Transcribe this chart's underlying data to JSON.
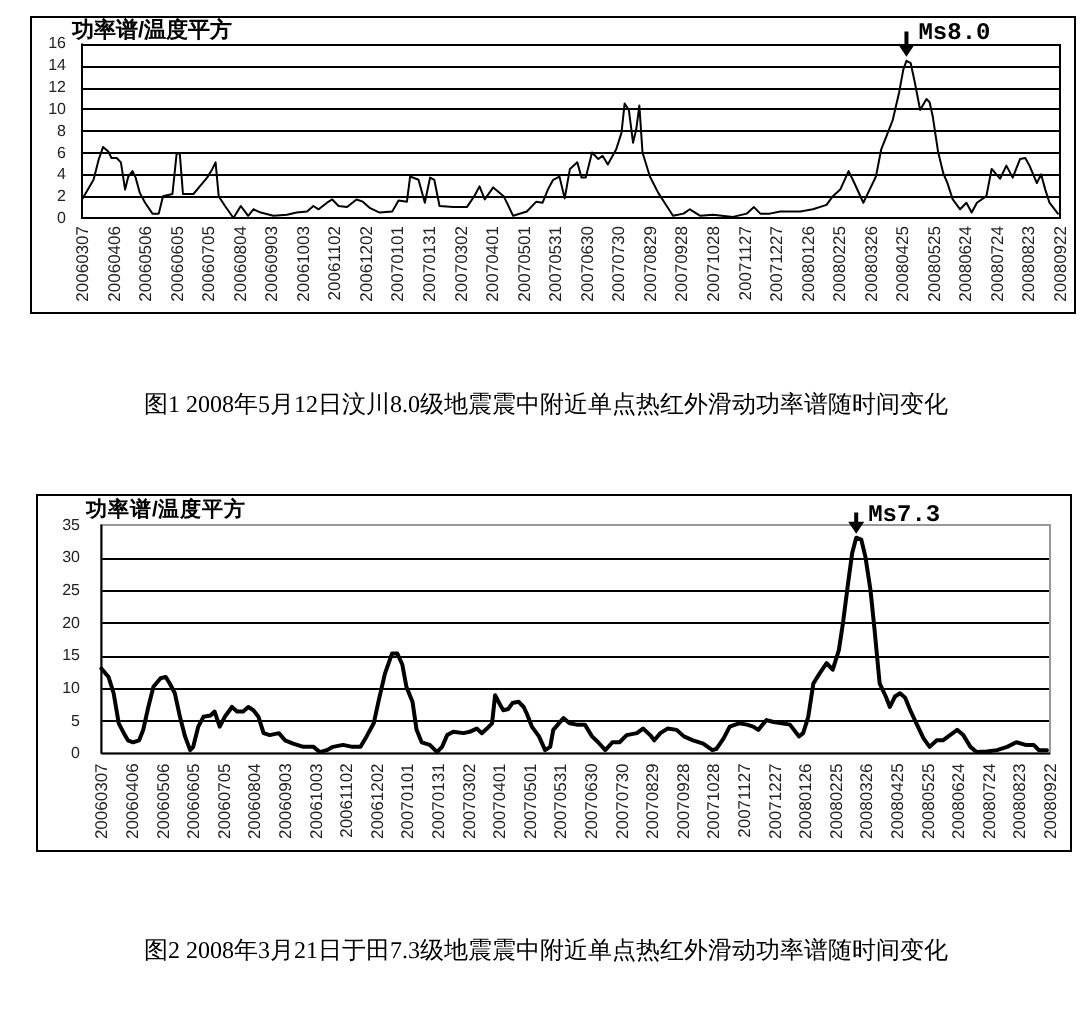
{
  "chart_data": [
    {
      "type": "line",
      "ylabel": "功率谱/温度平方",
      "x": [
        "2006-03-07",
        "2006-03-18",
        "2006-03-23",
        "2006-03-27",
        "2006-04-01",
        "2006-04-04",
        "2006-04-09",
        "2006-04-13",
        "2006-04-17",
        "2006-04-20",
        "2006-04-24",
        "2006-04-27",
        "2006-05-01",
        "2006-05-06",
        "2006-05-13",
        "2006-05-19",
        "2006-05-23",
        "2006-06-01",
        "2006-06-05",
        "2006-06-08",
        "2006-06-11",
        "2006-06-21",
        "2006-06-27",
        "2006-07-04",
        "2006-07-09",
        "2006-07-12",
        "2006-07-15",
        "2006-07-21",
        "2006-07-29",
        "2006-08-05",
        "2006-08-12",
        "2006-08-17",
        "2006-08-24",
        "2006-09-05",
        "2006-09-18",
        "2006-09-27",
        "2006-10-07",
        "2006-10-13",
        "2006-10-18",
        "2006-10-26",
        "2006-10-31",
        "2006-11-06",
        "2006-11-14",
        "2006-11-23",
        "2006-11-29",
        "2006-12-06",
        "2006-12-15",
        "2006-12-27",
        "2007-01-02",
        "2007-01-10",
        "2007-01-13",
        "2007-01-21",
        "2007-01-27",
        "2007-02-01",
        "2007-02-05",
        "2007-02-10",
        "2007-02-23",
        "2007-03-08",
        "2007-03-15",
        "2007-03-20",
        "2007-03-25",
        "2007-04-02",
        "2007-04-12",
        "2007-04-21",
        "2007-05-04",
        "2007-05-13",
        "2007-05-19",
        "2007-05-24",
        "2007-05-29",
        "2007-06-04",
        "2007-06-09",
        "2007-06-14",
        "2007-06-21",
        "2007-06-25",
        "2007-06-29",
        "2007-07-05",
        "2007-07-11",
        "2007-07-15",
        "2007-07-20",
        "2007-07-28",
        "2007-08-02",
        "2007-08-05",
        "2007-08-09",
        "2007-08-13",
        "2007-08-16",
        "2007-08-19",
        "2007-08-22",
        "2007-08-29",
        "2007-09-06",
        "2007-09-14",
        "2007-09-20",
        "2007-09-30",
        "2007-10-06",
        "2007-10-16",
        "2007-10-28",
        "2007-11-16",
        "2007-11-29",
        "2007-12-06",
        "2007-12-12",
        "2007-12-21",
        "2007-12-31",
        "2008-01-19",
        "2008-01-31",
        "2008-02-13",
        "2008-02-19",
        "2008-02-26",
        "2008-03-05",
        "2008-03-10",
        "2008-03-19",
        "2008-03-25",
        "2008-03-31",
        "2008-04-05",
        "2008-04-10",
        "2008-04-16",
        "2008-04-22",
        "2008-04-26",
        "2008-04-29",
        "2008-05-03",
        "2008-05-07",
        "2008-05-12",
        "2008-05-18",
        "2008-05-21",
        "2008-05-24",
        "2008-05-29",
        "2008-06-03",
        "2008-06-07",
        "2008-06-12",
        "2008-06-19",
        "2008-06-25",
        "2008-06-30",
        "2008-07-05",
        "2008-07-14",
        "2008-07-19",
        "2008-07-27",
        "2008-08-02",
        "2008-08-08",
        "2008-08-15",
        "2008-08-20",
        "2008-08-24",
        "2008-08-31",
        "2008-09-04",
        "2008-09-08",
        "2008-09-12",
        "2008-09-20"
      ],
      "series": [
        {
          "color": "#000000",
          "values": [
            1.7,
            3.5,
            5.4,
            6.5,
            6.1,
            5.5,
            5.5,
            5.1,
            2.6,
            3.8,
            4.3,
            3.7,
            2.3,
            1.4,
            0.4,
            0.4,
            2.0,
            2.2,
            5.9,
            5.9,
            2.2,
            2.2,
            2.9,
            3.7,
            4.5,
            5.1,
            2.0,
            1.1,
            0,
            1.1,
            0.2,
            0.8,
            0.5,
            0.2,
            0.3,
            0.5,
            0.6,
            1.1,
            0.8,
            1.4,
            1.7,
            1.1,
            1.0,
            1.7,
            1.5,
            0.9,
            0.5,
            0.6,
            1.6,
            1.5,
            3.8,
            3.5,
            1.4,
            3.7,
            3.5,
            1.1,
            1.0,
            1.0,
            2.0,
            2.9,
            1.7,
            2.8,
            2.0,
            0.2,
            0.6,
            1.5,
            1.4,
            2.6,
            3.5,
            3.8,
            1.8,
            4.5,
            5.1,
            3.7,
            3.7,
            6.0,
            5.4,
            5.7,
            4.9,
            6.3,
            7.8,
            10.5,
            9.9,
            6.9,
            8.1,
            10.3,
            6.0,
            3.8,
            2.3,
            1.1,
            0.2,
            0.4,
            0.8,
            0.2,
            0.3,
            0.1,
            0.4,
            1.0,
            0.4,
            0.4,
            0.6,
            0.6,
            0.8,
            1.2,
            2.0,
            2.6,
            4.3,
            3.3,
            1.4,
            2.6,
            3.8,
            6.3,
            7.5,
            9.0,
            11.5,
            13.6,
            14.4,
            14.2,
            12.4,
            9.9,
            10.9,
            10.6,
            9.3,
            6.1,
            4.1,
            3.2,
            1.7,
            0.8,
            1.4,
            0.5,
            1.4,
            2.0,
            4.5,
            3.6,
            4.8,
            3.7,
            5.4,
            5.5,
            4.8,
            3.2,
            4.0,
            2.6,
            1.4,
            0.4
          ]
        }
      ],
      "xlim": [
        "2006-03-07",
        "2008-09-22"
      ],
      "xticks": [
        {
          "value": "2006-03-07",
          "label": "20060307"
        },
        {
          "value": "2006-04-06",
          "label": "20060406"
        },
        {
          "value": "2006-05-06",
          "label": "20060506"
        },
        {
          "value": "2006-06-05",
          "label": "20060605"
        },
        {
          "value": "2006-07-05",
          "label": "20060705"
        },
        {
          "value": "2006-08-04",
          "label": "20060804"
        },
        {
          "value": "2006-09-03",
          "label": "20060903"
        },
        {
          "value": "2006-10-03",
          "label": "20061003"
        },
        {
          "value": "2006-11-02",
          "label": "20061102"
        },
        {
          "value": "2006-12-02",
          "label": "20061202"
        },
        {
          "value": "2007-01-01",
          "label": "20070101"
        },
        {
          "value": "2007-01-31",
          "label": "20070131"
        },
        {
          "value": "2007-03-02",
          "label": "20070302"
        },
        {
          "value": "2007-04-01",
          "label": "20070401"
        },
        {
          "value": "2007-05-01",
          "label": "20070501"
        },
        {
          "value": "2007-05-31",
          "label": "20070531"
        },
        {
          "value": "2007-06-30",
          "label": "20070630"
        },
        {
          "value": "2007-07-30",
          "label": "20070730"
        },
        {
          "value": "2007-08-29",
          "label": "20070829"
        },
        {
          "value": "2007-09-28",
          "label": "20070928"
        },
        {
          "value": "2007-10-28",
          "label": "20071028"
        },
        {
          "value": "2007-11-27",
          "label": "20071127"
        },
        {
          "value": "2007-12-27",
          "label": "20071227"
        },
        {
          "value": "2008-01-26",
          "label": "20080126"
        },
        {
          "value": "2008-02-25",
          "label": "20080225"
        },
        {
          "value": "2008-03-26",
          "label": "20080326"
        },
        {
          "value": "2008-04-25",
          "label": "20080425"
        },
        {
          "value": "2008-05-25",
          "label": "20080525"
        },
        {
          "value": "2008-06-24",
          "label": "20080624"
        },
        {
          "value": "2008-07-24",
          "label": "20080724"
        },
        {
          "value": "2008-08-23",
          "label": "20080823"
        },
        {
          "value": "2008-09-22",
          "label": "20080922"
        }
      ],
      "ylim": [
        0,
        16
      ],
      "yticks": [
        0,
        2,
        4,
        6,
        8,
        10,
        12,
        14,
        16
      ],
      "grid": "y",
      "annotations": [
        {
          "text": "Ms8.0",
          "x": "2008-04-29",
          "y": 14.4
        },
        "图1 2008年5月12日汶川8.0级地震震中附近单点热红外滑动功率谱随时间变化"
      ]
    },
    {
      "type": "line",
      "ylabel": "功率谱/温度平方",
      "x": [
        "2006-03-07",
        "2006-03-14",
        "2006-03-19",
        "2006-03-24",
        "2006-03-29",
        "2006-04-02",
        "2006-04-07",
        "2006-04-13",
        "2006-04-17",
        "2006-04-22",
        "2006-04-27",
        "2006-05-04",
        "2006-05-09",
        "2006-05-13",
        "2006-05-18",
        "2006-05-23",
        "2006-05-28",
        "2006-06-02",
        "2006-06-05",
        "2006-06-10",
        "2006-06-15",
        "2006-06-22",
        "2006-06-26",
        "2006-07-01",
        "2006-07-06",
        "2006-07-13",
        "2006-07-18",
        "2006-07-24",
        "2006-07-29",
        "2006-08-03",
        "2006-08-08",
        "2006-08-13",
        "2006-08-19",
        "2006-08-28",
        "2006-09-03",
        "2006-09-11",
        "2006-09-21",
        "2006-10-01",
        "2006-10-07",
        "2006-10-14",
        "2006-10-20",
        "2006-10-30",
        "2006-11-08",
        "2006-11-16",
        "2006-11-22",
        "2006-11-29",
        "2006-12-04",
        "2006-12-10",
        "2006-12-17",
        "2006-12-22",
        "2006-12-27",
        "2006-12-31",
        "2007-01-06",
        "2007-01-10",
        "2007-01-15",
        "2007-01-23",
        "2007-01-30",
        "2007-02-04",
        "2007-02-09",
        "2007-02-15",
        "2007-02-25",
        "2007-03-03",
        "2007-03-10",
        "2007-03-15",
        "2007-03-20",
        "2007-03-25",
        "2007-03-28",
        "2007-04-02",
        "2007-04-05",
        "2007-04-10",
        "2007-04-14",
        "2007-04-20",
        "2007-04-25",
        "2007-04-28",
        "2007-05-03",
        "2007-05-10",
        "2007-05-16",
        "2007-05-21",
        "2007-05-24",
        "2007-06-03",
        "2007-06-09",
        "2007-06-16",
        "2007-06-24",
        "2007-07-01",
        "2007-07-07",
        "2007-07-14",
        "2007-07-21",
        "2007-07-28",
        "2007-08-04",
        "2007-08-14",
        "2007-08-20",
        "2007-08-27",
        "2007-08-31",
        "2007-09-06",
        "2007-09-13",
        "2007-09-22",
        "2007-09-29",
        "2007-10-08",
        "2007-10-18",
        "2007-10-27",
        "2007-10-31",
        "2007-11-07",
        "2007-11-13",
        "2007-11-22",
        "2007-11-30",
        "2007-12-06",
        "2007-12-11",
        "2007-12-19",
        "2007-12-26",
        "2008-01-03",
        "2008-01-11",
        "2008-01-20",
        "2008-01-24",
        "2008-01-29",
        "2008-02-03",
        "2008-02-09",
        "2008-02-16",
        "2008-02-22",
        "2008-02-28",
        "2008-03-03",
        "2008-03-08",
        "2008-03-12",
        "2008-03-16",
        "2008-03-21",
        "2008-03-25",
        "2008-03-30",
        "2008-04-03",
        "2008-04-08",
        "2008-04-14",
        "2008-04-18",
        "2008-04-23",
        "2008-04-28",
        "2008-05-03",
        "2008-05-08",
        "2008-05-14",
        "2008-05-21",
        "2008-05-27",
        "2008-06-03",
        "2008-06-09",
        "2008-06-16",
        "2008-06-23",
        "2008-06-29",
        "2008-07-06",
        "2008-07-12",
        "2008-07-22",
        "2008-08-01",
        "2008-08-11",
        "2008-08-20",
        "2008-08-29",
        "2008-09-06",
        "2008-09-11",
        "2008-09-19"
      ],
      "series": [
        {
          "color": "#000000",
          "values": [
            13.0,
            11.7,
            9.2,
            4.6,
            3.1,
            2.0,
            1.7,
            2.0,
            3.6,
            7.1,
            10.2,
            11.5,
            11.7,
            10.7,
            9.2,
            5.6,
            2.6,
            0.5,
            1.0,
            4.1,
            5.6,
            5.8,
            6.4,
            4.1,
            5.6,
            7.1,
            6.4,
            6.4,
            7.1,
            6.6,
            5.6,
            3.1,
            2.8,
            3.1,
            2.0,
            1.5,
            1.0,
            1.0,
            0.2,
            0.5,
            1.0,
            1.3,
            1.0,
            1.0,
            2.6,
            4.6,
            8.2,
            12.2,
            15.3,
            15.3,
            13.6,
            10.2,
            7.9,
            3.6,
            1.7,
            1.3,
            0.2,
            1.0,
            2.8,
            3.3,
            3.1,
            3.3,
            3.8,
            3.1,
            3.8,
            4.6,
            8.9,
            7.4,
            6.6,
            6.8,
            7.7,
            7.9,
            7.1,
            6.1,
            4.1,
            2.6,
            0.5,
            1.0,
            3.6,
            5.4,
            4.6,
            4.4,
            4.4,
            2.6,
            1.7,
            0.5,
            1.7,
            1.7,
            2.8,
            3.1,
            3.8,
            2.8,
            2.0,
            3.1,
            3.8,
            3.6,
            2.6,
            2.0,
            1.5,
            0.5,
            0.7,
            2.3,
            4.1,
            4.6,
            4.4,
            4.1,
            3.6,
            5.1,
            4.8,
            4.6,
            4.4,
            2.6,
            3.1,
            5.6,
            10.7,
            12.2,
            13.8,
            12.8,
            15.8,
            19.9,
            26.0,
            30.6,
            33.0,
            32.7,
            30.1,
            25.0,
            18.9,
            10.7,
            8.7,
            7.1,
            8.7,
            9.2,
            8.5,
            6.6,
            4.6,
            2.3,
            1.0,
            2.0,
            2.0,
            2.8,
            3.6,
            2.8,
            1.0,
            0.2,
            0.3,
            0.5,
            1.0,
            1.7,
            1.3,
            1.3,
            0.5,
            0.5
          ]
        }
      ],
      "xlim": [
        "2006-03-07",
        "2008-09-22"
      ],
      "xticks": [
        {
          "value": "2006-03-07",
          "label": "20060307"
        },
        {
          "value": "2006-04-06",
          "label": "20060406"
        },
        {
          "value": "2006-05-06",
          "label": "20060506"
        },
        {
          "value": "2006-06-05",
          "label": "20060605"
        },
        {
          "value": "2006-07-05",
          "label": "20060705"
        },
        {
          "value": "2006-08-04",
          "label": "20060804"
        },
        {
          "value": "2006-09-03",
          "label": "20060903"
        },
        {
          "value": "2006-10-03",
          "label": "20061003"
        },
        {
          "value": "2006-11-02",
          "label": "20061102"
        },
        {
          "value": "2006-12-02",
          "label": "20061202"
        },
        {
          "value": "2007-01-01",
          "label": "20070101"
        },
        {
          "value": "2007-01-31",
          "label": "20070131"
        },
        {
          "value": "2007-03-02",
          "label": "20070302"
        },
        {
          "value": "2007-04-01",
          "label": "20070401"
        },
        {
          "value": "2007-05-01",
          "label": "20070501"
        },
        {
          "value": "2007-05-31",
          "label": "20070531"
        },
        {
          "value": "2007-06-30",
          "label": "20070630"
        },
        {
          "value": "2007-07-30",
          "label": "20070730"
        },
        {
          "value": "2007-08-29",
          "label": "20070829"
        },
        {
          "value": "2007-09-28",
          "label": "20070928"
        },
        {
          "value": "2007-10-28",
          "label": "20071028"
        },
        {
          "value": "2007-11-27",
          "label": "20071127"
        },
        {
          "value": "2007-12-27",
          "label": "20071227"
        },
        {
          "value": "2008-01-26",
          "label": "20080126"
        },
        {
          "value": "2008-02-25",
          "label": "20080225"
        },
        {
          "value": "2008-03-26",
          "label": "20080326"
        },
        {
          "value": "2008-04-25",
          "label": "20080425"
        },
        {
          "value": "2008-05-25",
          "label": "20080525"
        },
        {
          "value": "2008-06-24",
          "label": "20080624"
        },
        {
          "value": "2008-07-24",
          "label": "20080724"
        },
        {
          "value": "2008-08-23",
          "label": "20080823"
        },
        {
          "value": "2008-09-22",
          "label": "20080922"
        }
      ],
      "ylim": [
        0,
        35
      ],
      "yticks": [
        0,
        5,
        10,
        15,
        20,
        25,
        30,
        35
      ],
      "grid": "y",
      "annotations": [
        {
          "text": "Ms7.3",
          "x": "2008-03-16",
          "y": 33.0
        },
        "图2 2008年3月21日于田7.3级地震震中附近单点热红外滑动功率谱随时间变化"
      ]
    }
  ]
}
